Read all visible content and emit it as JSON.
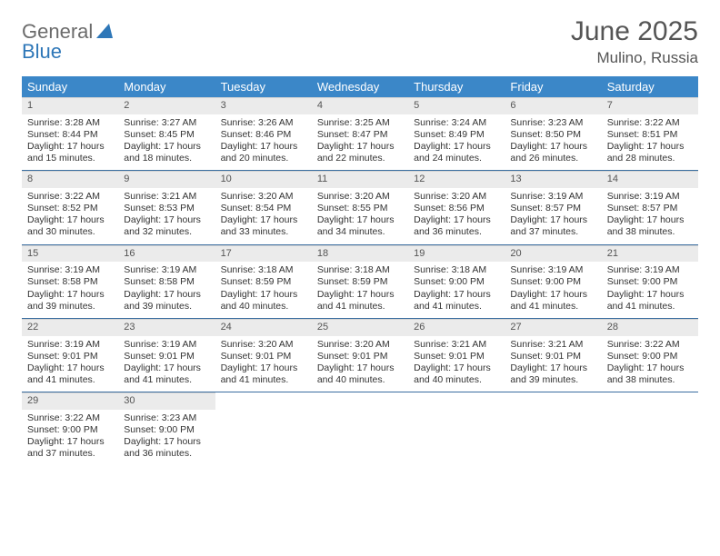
{
  "brand": {
    "name1": "General",
    "name2": "Blue"
  },
  "title": "June 2025",
  "location": "Mulino, Russia",
  "colors": {
    "header_bg": "#3b87c8",
    "header_text": "#ffffff",
    "brand_gray": "#6b6b6b",
    "brand_blue": "#2e77b8",
    "daynum_bg": "#ebebeb",
    "week_border": "#3b6ea0",
    "body_text": "#333333",
    "title_text": "#555555"
  },
  "day_names": [
    "Sunday",
    "Monday",
    "Tuesday",
    "Wednesday",
    "Thursday",
    "Friday",
    "Saturday"
  ],
  "weeks": [
    [
      {
        "n": "1",
        "sr": "3:28 AM",
        "ss": "8:44 PM",
        "dl": "17 hours and 15 minutes."
      },
      {
        "n": "2",
        "sr": "3:27 AM",
        "ss": "8:45 PM",
        "dl": "17 hours and 18 minutes."
      },
      {
        "n": "3",
        "sr": "3:26 AM",
        "ss": "8:46 PM",
        "dl": "17 hours and 20 minutes."
      },
      {
        "n": "4",
        "sr": "3:25 AM",
        "ss": "8:47 PM",
        "dl": "17 hours and 22 minutes."
      },
      {
        "n": "5",
        "sr": "3:24 AM",
        "ss": "8:49 PM",
        "dl": "17 hours and 24 minutes."
      },
      {
        "n": "6",
        "sr": "3:23 AM",
        "ss": "8:50 PM",
        "dl": "17 hours and 26 minutes."
      },
      {
        "n": "7",
        "sr": "3:22 AM",
        "ss": "8:51 PM",
        "dl": "17 hours and 28 minutes."
      }
    ],
    [
      {
        "n": "8",
        "sr": "3:22 AM",
        "ss": "8:52 PM",
        "dl": "17 hours and 30 minutes."
      },
      {
        "n": "9",
        "sr": "3:21 AM",
        "ss": "8:53 PM",
        "dl": "17 hours and 32 minutes."
      },
      {
        "n": "10",
        "sr": "3:20 AM",
        "ss": "8:54 PM",
        "dl": "17 hours and 33 minutes."
      },
      {
        "n": "11",
        "sr": "3:20 AM",
        "ss": "8:55 PM",
        "dl": "17 hours and 34 minutes."
      },
      {
        "n": "12",
        "sr": "3:20 AM",
        "ss": "8:56 PM",
        "dl": "17 hours and 36 minutes."
      },
      {
        "n": "13",
        "sr": "3:19 AM",
        "ss": "8:57 PM",
        "dl": "17 hours and 37 minutes."
      },
      {
        "n": "14",
        "sr": "3:19 AM",
        "ss": "8:57 PM",
        "dl": "17 hours and 38 minutes."
      }
    ],
    [
      {
        "n": "15",
        "sr": "3:19 AM",
        "ss": "8:58 PM",
        "dl": "17 hours and 39 minutes."
      },
      {
        "n": "16",
        "sr": "3:19 AM",
        "ss": "8:58 PM",
        "dl": "17 hours and 39 minutes."
      },
      {
        "n": "17",
        "sr": "3:18 AM",
        "ss": "8:59 PM",
        "dl": "17 hours and 40 minutes."
      },
      {
        "n": "18",
        "sr": "3:18 AM",
        "ss": "8:59 PM",
        "dl": "17 hours and 41 minutes."
      },
      {
        "n": "19",
        "sr": "3:18 AM",
        "ss": "9:00 PM",
        "dl": "17 hours and 41 minutes."
      },
      {
        "n": "20",
        "sr": "3:19 AM",
        "ss": "9:00 PM",
        "dl": "17 hours and 41 minutes."
      },
      {
        "n": "21",
        "sr": "3:19 AM",
        "ss": "9:00 PM",
        "dl": "17 hours and 41 minutes."
      }
    ],
    [
      {
        "n": "22",
        "sr": "3:19 AM",
        "ss": "9:01 PM",
        "dl": "17 hours and 41 minutes."
      },
      {
        "n": "23",
        "sr": "3:19 AM",
        "ss": "9:01 PM",
        "dl": "17 hours and 41 minutes."
      },
      {
        "n": "24",
        "sr": "3:20 AM",
        "ss": "9:01 PM",
        "dl": "17 hours and 41 minutes."
      },
      {
        "n": "25",
        "sr": "3:20 AM",
        "ss": "9:01 PM",
        "dl": "17 hours and 40 minutes."
      },
      {
        "n": "26",
        "sr": "3:21 AM",
        "ss": "9:01 PM",
        "dl": "17 hours and 40 minutes."
      },
      {
        "n": "27",
        "sr": "3:21 AM",
        "ss": "9:01 PM",
        "dl": "17 hours and 39 minutes."
      },
      {
        "n": "28",
        "sr": "3:22 AM",
        "ss": "9:00 PM",
        "dl": "17 hours and 38 minutes."
      }
    ],
    [
      {
        "n": "29",
        "sr": "3:22 AM",
        "ss": "9:00 PM",
        "dl": "17 hours and 37 minutes."
      },
      {
        "n": "30",
        "sr": "3:23 AM",
        "ss": "9:00 PM",
        "dl": "17 hours and 36 minutes."
      },
      null,
      null,
      null,
      null,
      null
    ]
  ],
  "labels": {
    "sunrise": "Sunrise: ",
    "sunset": "Sunset: ",
    "daylight": "Daylight: "
  }
}
